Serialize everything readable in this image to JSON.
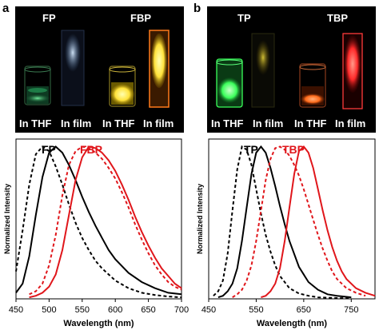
{
  "panel_a": {
    "letter": "a",
    "photo": {
      "top_left": "FP",
      "top_right": "FBP",
      "labels": [
        "In THF",
        "In film",
        "In THF",
        "In film"
      ]
    }
  },
  "panel_b": {
    "letter": "b",
    "photo": {
      "top_left": "TP",
      "top_right": "TBP",
      "labels": [
        "In THF",
        "In film",
        "In THF",
        "In film"
      ]
    }
  },
  "colors": {
    "black": "#000000",
    "red": "#e0161b",
    "green_glow": "#5bff8a",
    "yellow_glow": "#ffe23a",
    "orange_glow": "#ff6a1a",
    "red_glow": "#ff2a2a",
    "blue_glow": "#9bc7ff"
  },
  "chart_data": [
    {
      "type": "line",
      "title": "",
      "xlabel": "Wavelength (nm)",
      "ylabel": "Normalized Intensity",
      "xlim": [
        450,
        700
      ],
      "ylim": [
        0,
        1.05
      ],
      "xticks": [
        450,
        500,
        550,
        600,
        650,
        700
      ],
      "legend": [
        {
          "name": "FP",
          "color": "#000000"
        },
        {
          "name": "FBP",
          "color": "#e0161b"
        }
      ],
      "series": [
        {
          "name": "FP (solution)",
          "color": "#000000",
          "dashed": true,
          "x": [
            450,
            460,
            470,
            480,
            490,
            500,
            510,
            520,
            530,
            540,
            550,
            560,
            570,
            580,
            590,
            600,
            620,
            640,
            660,
            680,
            700
          ],
          "y": [
            0.18,
            0.45,
            0.75,
            0.95,
            1.0,
            0.97,
            0.87,
            0.75,
            0.62,
            0.5,
            0.4,
            0.32,
            0.25,
            0.2,
            0.16,
            0.12,
            0.07,
            0.04,
            0.025,
            0.015,
            0.01
          ]
        },
        {
          "name": "FP (film)",
          "color": "#000000",
          "dashed": false,
          "x": [
            450,
            460,
            470,
            480,
            490,
            500,
            510,
            520,
            530,
            540,
            550,
            560,
            570,
            580,
            590,
            600,
            620,
            640,
            660,
            680,
            700
          ],
          "y": [
            0.04,
            0.1,
            0.28,
            0.55,
            0.8,
            0.96,
            1.0,
            0.96,
            0.88,
            0.78,
            0.67,
            0.57,
            0.48,
            0.4,
            0.32,
            0.26,
            0.17,
            0.11,
            0.07,
            0.04,
            0.03
          ]
        },
        {
          "name": "FBP (solution)",
          "color": "#e0161b",
          "dashed": true,
          "x": [
            470,
            480,
            490,
            500,
            510,
            520,
            530,
            540,
            550,
            560,
            570,
            580,
            590,
            600,
            610,
            620,
            630,
            640,
            650,
            660,
            670,
            680,
            690,
            700
          ],
          "y": [
            0.03,
            0.05,
            0.1,
            0.22,
            0.42,
            0.68,
            0.88,
            0.97,
            1.0,
            0.99,
            0.96,
            0.92,
            0.86,
            0.79,
            0.7,
            0.6,
            0.49,
            0.39,
            0.3,
            0.22,
            0.16,
            0.11,
            0.08,
            0.06
          ]
        },
        {
          "name": "FBP (film)",
          "color": "#e0161b",
          "dashed": false,
          "x": [
            470,
            480,
            490,
            500,
            510,
            520,
            530,
            540,
            550,
            560,
            570,
            580,
            590,
            600,
            610,
            620,
            630,
            640,
            650,
            660,
            670,
            680,
            690,
            700
          ],
          "y": [
            0.01,
            0.02,
            0.04,
            0.08,
            0.16,
            0.32,
            0.55,
            0.78,
            0.93,
            1.0,
            0.99,
            0.96,
            0.91,
            0.84,
            0.75,
            0.65,
            0.54,
            0.44,
            0.35,
            0.27,
            0.2,
            0.15,
            0.1,
            0.07
          ]
        }
      ]
    },
    {
      "type": "line",
      "title": "",
      "xlabel": "Wavelength (nm)",
      "ylabel": "Normalized Intensity",
      "xlim": [
        450,
        800
      ],
      "ylim": [
        0,
        1.05
      ],
      "xticks": [
        450,
        550,
        650,
        750
      ],
      "legend": [
        {
          "name": "TP",
          "color": "#000000"
        },
        {
          "name": "TBP",
          "color": "#e0161b"
        }
      ],
      "series": [
        {
          "name": "TP (solution)",
          "color": "#000000",
          "dashed": true,
          "x": [
            460,
            470,
            480,
            490,
            500,
            510,
            520,
            530,
            540,
            550,
            560,
            570,
            580,
            590,
            600,
            620,
            640,
            660,
            680,
            700,
            720,
            750
          ],
          "y": [
            0.02,
            0.05,
            0.12,
            0.3,
            0.58,
            0.85,
            1.0,
            0.98,
            0.88,
            0.72,
            0.56,
            0.42,
            0.31,
            0.22,
            0.15,
            0.07,
            0.035,
            0.02,
            0.01,
            0.008,
            0.005,
            0.003
          ]
        },
        {
          "name": "TP (film)",
          "color": "#000000",
          "dashed": false,
          "x": [
            470,
            480,
            490,
            500,
            510,
            520,
            530,
            540,
            550,
            560,
            570,
            580,
            590,
            600,
            610,
            620,
            640,
            660,
            680,
            700,
            720,
            750
          ],
          "y": [
            0.01,
            0.02,
            0.05,
            0.1,
            0.2,
            0.38,
            0.6,
            0.82,
            0.96,
            1.0,
            0.96,
            0.86,
            0.74,
            0.61,
            0.49,
            0.38,
            0.21,
            0.11,
            0.06,
            0.03,
            0.02,
            0.01
          ]
        },
        {
          "name": "TBP (solution)",
          "color": "#e0161b",
          "dashed": true,
          "x": [
            500,
            510,
            520,
            530,
            540,
            550,
            560,
            570,
            580,
            590,
            600,
            610,
            620,
            630,
            640,
            650,
            660,
            670,
            680,
            690,
            700,
            710,
            720,
            740,
            760,
            780
          ],
          "y": [
            0.01,
            0.03,
            0.06,
            0.12,
            0.22,
            0.38,
            0.58,
            0.78,
            0.92,
            0.99,
            1.0,
            0.98,
            0.94,
            0.88,
            0.81,
            0.72,
            0.62,
            0.52,
            0.42,
            0.33,
            0.25,
            0.18,
            0.13,
            0.07,
            0.04,
            0.02
          ]
        },
        {
          "name": "TBP (film)",
          "color": "#e0161b",
          "dashed": false,
          "x": [
            560,
            570,
            580,
            590,
            600,
            610,
            620,
            630,
            640,
            650,
            660,
            670,
            680,
            690,
            700,
            710,
            720,
            730,
            740,
            760,
            780,
            800
          ],
          "y": [
            0.01,
            0.02,
            0.05,
            0.1,
            0.2,
            0.38,
            0.6,
            0.82,
            0.97,
            1.0,
            0.96,
            0.86,
            0.72,
            0.58,
            0.45,
            0.34,
            0.25,
            0.18,
            0.13,
            0.07,
            0.04,
            0.02
          ]
        }
      ]
    }
  ]
}
